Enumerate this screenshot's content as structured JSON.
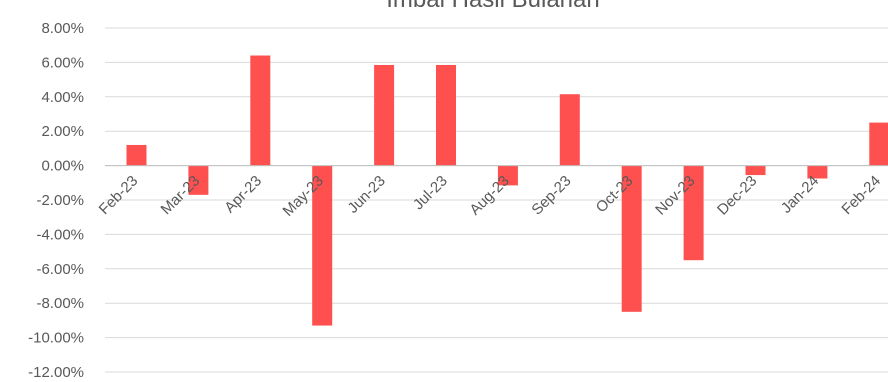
{
  "chart_data": {
    "type": "bar",
    "title": "Imbal Hasil Bulanan",
    "categories": [
      "Feb-23",
      "Mar-23",
      "Apr-23",
      "May-23",
      "Jun-23",
      "Jul-23",
      "Aug-23",
      "Sep-23",
      "Oct-23",
      "Nov-23",
      "Dec-23",
      "Jan-24",
      "Feb-24"
    ],
    "series": [
      {
        "values": [
          1.2,
          -1.7,
          6.4,
          -9.3,
          5.85,
          5.85,
          -1.15,
          4.15,
          -8.5,
          -5.5,
          -0.55,
          -0.75,
          2.5
        ]
      }
    ],
    "ylim": [
      -12,
      8
    ],
    "yticks": [
      "8.00%",
      "6.00%",
      "4.00%",
      "2.00%",
      "0.00%",
      "-2.00%",
      "-4.00%",
      "-6.00%",
      "-8.00%",
      "-10.00%",
      "-12.00%"
    ],
    "grid": true,
    "bar_color": "#ff5050",
    "grid_color": "#d9d9d9"
  }
}
